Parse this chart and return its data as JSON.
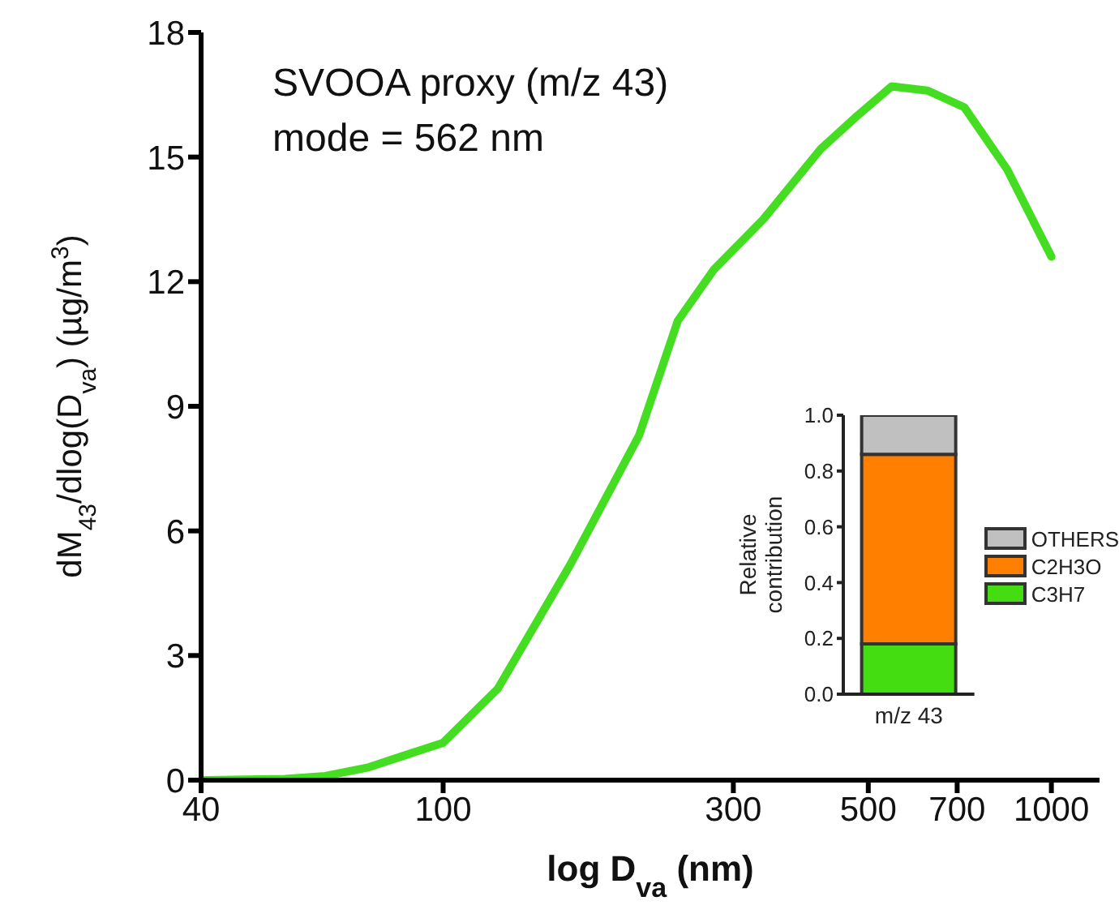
{
  "chart_data": [
    {
      "type": "line",
      "xlabel": "log D$_{va}$ (nm)",
      "ylabel": "dM$_{43}$/dlog(D$_{va}$)  (µg/m$^{3}$)",
      "annotations": [
        "SVOOA proxy (m/z 43)",
        "mode = 562 nm"
      ],
      "log": "x",
      "xlim": [
        40,
        1200
      ],
      "xticks": [
        40,
        100,
        300,
        500,
        700,
        1000
      ],
      "ylim": [
        0,
        18
      ],
      "yticks": [
        0,
        3,
        6,
        9,
        12,
        15,
        18
      ],
      "x": [
        40,
        55,
        64,
        75,
        100,
        123,
        162,
        210,
        243,
        279,
        336,
        418,
        480,
        546,
        626,
        719,
        846,
        1000
      ],
      "series": [
        {
          "color": "#44dd22",
          "values": [
            0,
            0.03,
            0.1,
            0.3,
            0.9,
            2.2,
            5.2,
            8.3,
            11.05,
            12.3,
            13.5,
            15.2,
            16.0,
            16.7,
            16.6,
            16.2,
            14.7,
            12.6
          ]
        }
      ]
    },
    {
      "type": "bar",
      "stacked": true,
      "ylabel": "Relative contribution",
      "categories": [
        "m/z 43"
      ],
      "ylim": [
        0,
        1
      ],
      "yticks": [
        {
          "value": 0,
          "label": "0.0"
        },
        {
          "value": 0.2,
          "label": "0.2"
        },
        {
          "value": 0.4,
          "label": "0.4"
        },
        {
          "value": 0.6,
          "label": "0.6"
        },
        {
          "value": 0.8,
          "label": "0.8"
        },
        {
          "value": 1,
          "label": "1.0"
        }
      ],
      "legend": "right",
      "series": [
        {
          "name": "C3H7",
          "color": "#44dd11",
          "values": [
            0.18
          ]
        },
        {
          "name": "C2H3O",
          "color": "#ff8000",
          "values": [
            0.68
          ]
        },
        {
          "name": "OTHERS",
          "color": "#c0c0c0",
          "values": [
            0.14
          ]
        }
      ]
    }
  ]
}
